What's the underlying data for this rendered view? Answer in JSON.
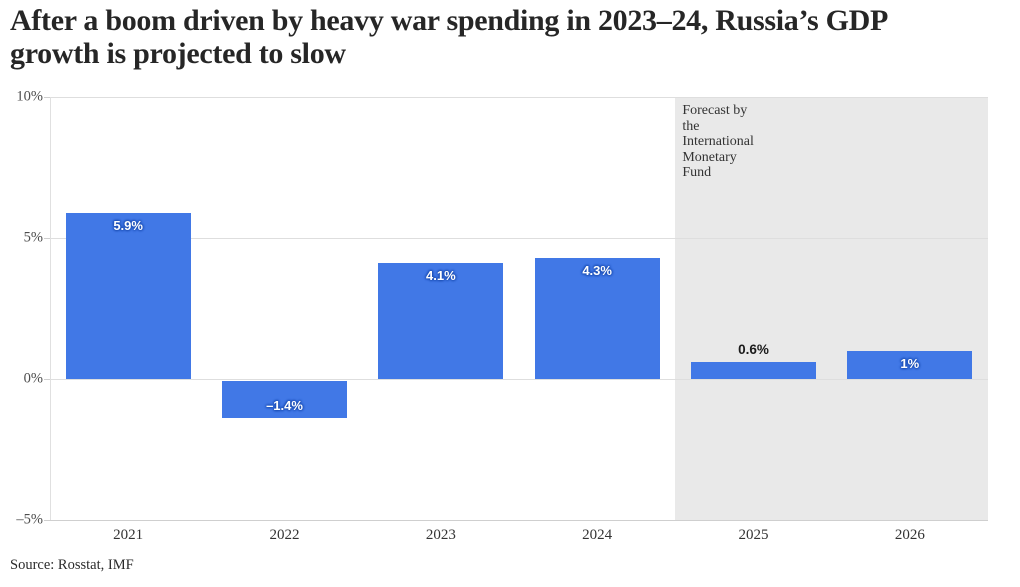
{
  "header": {
    "title": "After a boom driven by heavy war spending in 2023–24, Russia’s GDP\ngrowth is projected to slow"
  },
  "source": {
    "label": "Source: Rosstat, IMF"
  },
  "chart_data": {
    "type": "bar",
    "title": "After a boom driven by heavy war spending in 2023–24, Russia’s GDP growth is projected to slow",
    "categories": [
      "2021",
      "2022",
      "2023",
      "2024",
      "2025",
      "2026"
    ],
    "values": [
      5.9,
      -1.4,
      4.1,
      4.3,
      0.6,
      1
    ],
    "value_labels": [
      "5.9%",
      "–1.4%",
      "4.1%",
      "4.3%",
      "0.6%",
      "1%"
    ],
    "unit": "%",
    "xlabel": "",
    "ylabel": "",
    "ylim": [
      -5,
      10
    ],
    "yticks": [
      {
        "value": 10,
        "label": "10%"
      },
      {
        "value": 5,
        "label": "5%"
      },
      {
        "value": 0,
        "label": "0%"
      },
      {
        "value": -5,
        "label": "–5%"
      }
    ],
    "grid": true,
    "legend": "none",
    "forecast": {
      "start_index": 4,
      "start_category": "2025",
      "note": "Forecast by\nthe\nInternational\nMonetary\nFund"
    },
    "colors": {
      "bar": "#4178e6",
      "bar_label": "#ffffff",
      "bar_label_halo": "#1b4eb4",
      "outside_label": "#1a1a1a",
      "forecast_band": "#e9e9e9",
      "gridline": "#dedede",
      "axis_text": "#4d4d4d",
      "title_text": "#262626"
    }
  }
}
